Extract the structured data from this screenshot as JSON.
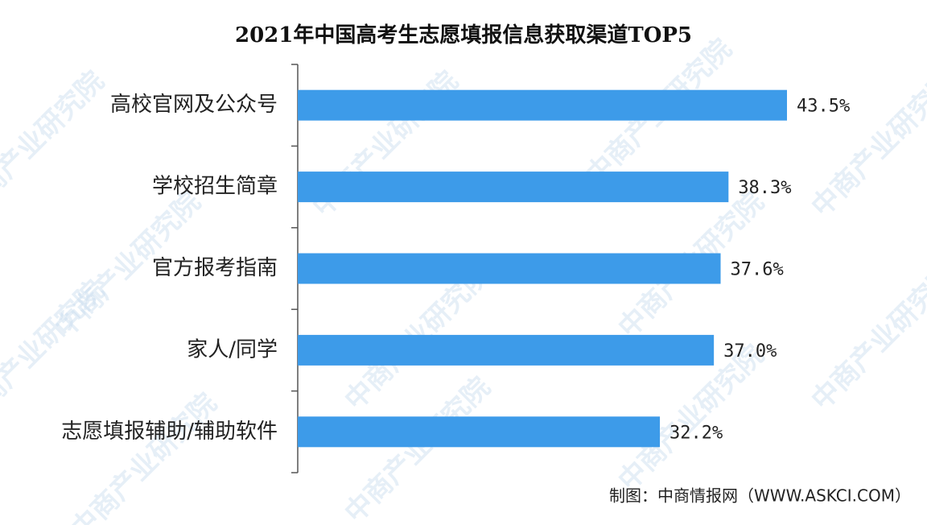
{
  "chart_data": {
    "type": "bar",
    "orientation": "horizontal",
    "title": "2021年中国高考生志愿填报信息获取渠道TOP5",
    "categories": [
      "高校官网及公众号",
      "学校招生简章",
      "官方报考指南",
      "家人/同学",
      "志愿填报辅助/辅助软件"
    ],
    "values": [
      43.5,
      38.3,
      37.6,
      37.0,
      32.2
    ],
    "value_labels": [
      "43.5%",
      "38.3%",
      "37.6%",
      "37.0%",
      "32.2%"
    ],
    "color": "#3d9be9",
    "source": "制图：中商情报网（WWW.ASKCI.COM）",
    "watermark": "中商产业研究院"
  }
}
